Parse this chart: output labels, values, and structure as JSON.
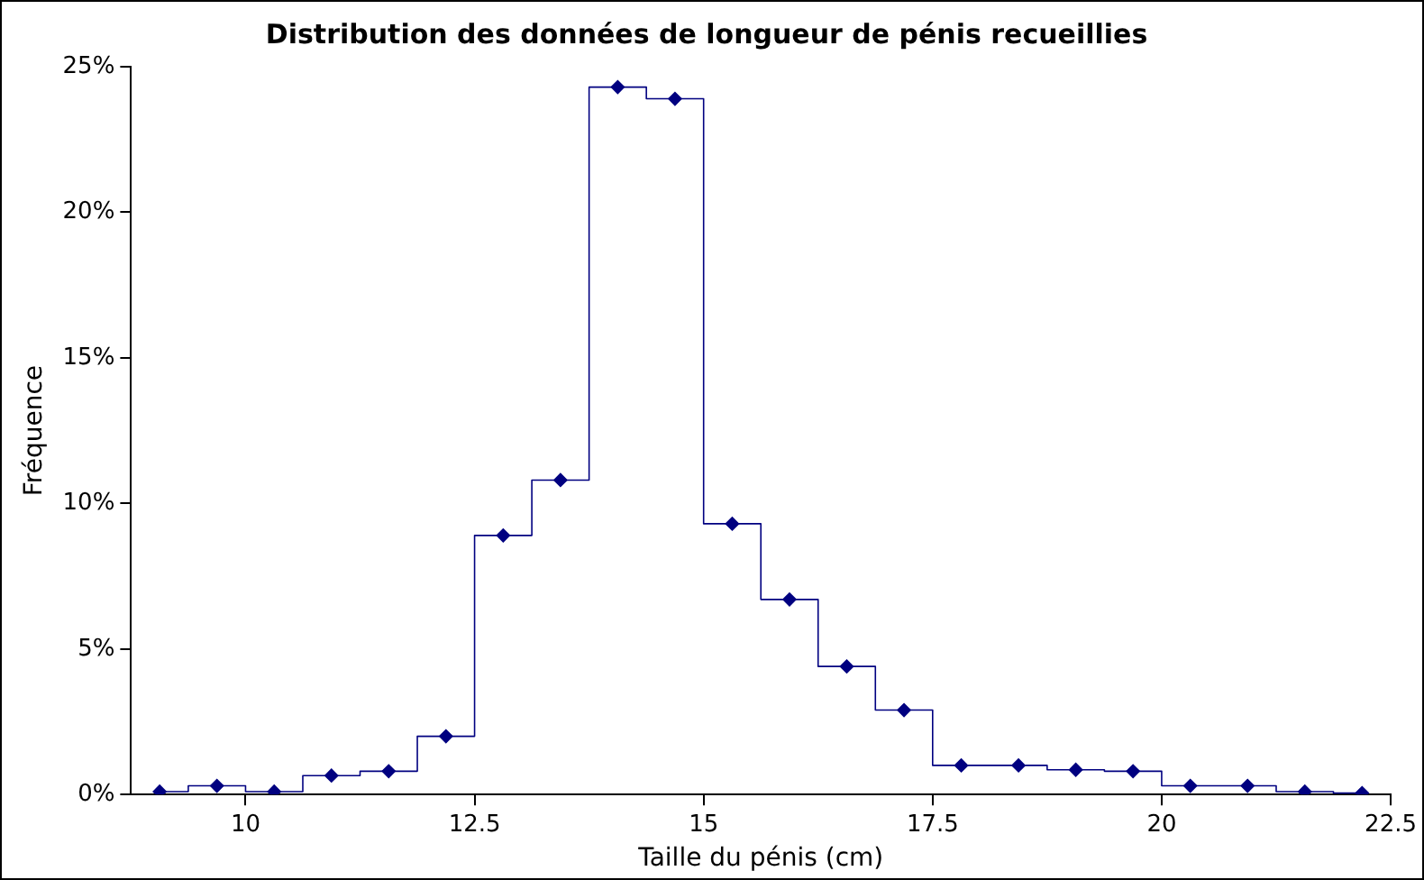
{
  "chart_data": {
    "type": "step",
    "title": "Distribution des données de longueur de pénis recueillies",
    "xlabel": "Taille du pénis (cm)",
    "ylabel": "Fréquence",
    "x": [
      9.0625,
      9.6875,
      10.3125,
      10.9375,
      11.5625,
      12.1875,
      12.8125,
      13.4375,
      14.0625,
      14.6875,
      15.3125,
      15.9375,
      16.5625,
      17.1875,
      17.8125,
      18.4375,
      19.0625,
      19.6875,
      20.3125,
      20.9375,
      21.5625,
      22.1875
    ],
    "series": [
      {
        "color": "#000080",
        "values": [
          0.1,
          0.3,
          0.1,
          0.65,
          0.8,
          2.0,
          8.9,
          10.8,
          24.3,
          23.9,
          9.3,
          6.7,
          4.4,
          2.9,
          1.0,
          1.0,
          0.85,
          0.8,
          0.3,
          0.3,
          0.1,
          0.05
        ]
      }
    ],
    "xlim": [
      8.75,
      22.5
    ],
    "xticks": [
      10,
      12.5,
      15,
      17.5,
      20,
      22.5
    ],
    "ylim": [
      0,
      25
    ],
    "yticks": [
      {
        "value": 0,
        "label": "0%"
      },
      {
        "value": 5,
        "label": "5%"
      },
      {
        "value": 10,
        "label": "10%"
      },
      {
        "value": 15,
        "label": "15%"
      },
      {
        "value": 20,
        "label": "20%"
      },
      {
        "value": 25,
        "label": "25%"
      }
    ],
    "grid": false,
    "legend": false,
    "marker": "diamond",
    "line_style": "solid"
  }
}
